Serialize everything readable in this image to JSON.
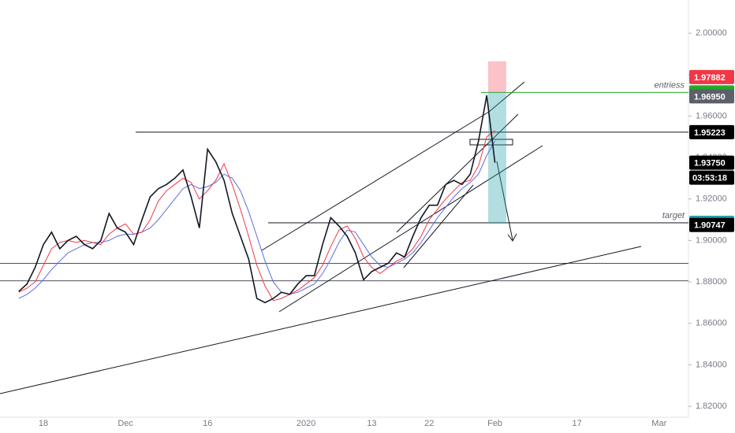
{
  "chart_data": {
    "type": "line",
    "categories": [
      null,
      null,
      null,
      "18",
      null,
      null,
      null,
      null,
      null,
      null,
      null,
      null,
      null,
      "Dec",
      null,
      null,
      null,
      null,
      null,
      null,
      null,
      null,
      null,
      "16",
      null,
      null,
      null,
      null,
      null,
      null,
      null,
      null,
      null,
      null,
      null,
      "2020",
      null,
      null,
      null,
      null,
      null,
      null,
      null,
      "13",
      null,
      null,
      null,
      null,
      null,
      null,
      "22",
      null,
      null,
      null,
      null,
      null,
      null,
      null,
      "Feb",
      null,
      null,
      null,
      null,
      null,
      null,
      null,
      null,
      null,
      "17",
      null,
      null,
      null,
      null,
      null,
      null,
      null,
      null,
      null,
      "Mar",
      null,
      null,
      null
    ],
    "series": [
      {
        "color": "#131722",
        "values": [
          1.8754,
          1.879,
          1.887,
          1.898,
          1.904,
          1.896,
          1.9,
          1.902,
          1.898,
          1.896,
          1.9,
          1.913,
          1.906,
          1.904,
          1.898,
          1.91,
          1.921,
          1.925,
          1.927,
          1.93,
          1.934,
          1.921,
          1.906,
          1.944,
          1.938,
          1.929,
          1.913,
          1.902,
          1.891,
          1.872,
          1.87,
          1.872,
          1.875,
          1.874,
          1.879,
          1.883,
          1.883,
          1.898,
          1.911,
          1.907,
          1.902,
          1.894,
          1.881,
          1.885,
          1.887,
          1.889,
          1.894,
          1.892,
          1.902,
          1.911,
          1.917,
          1.917,
          1.927,
          1.929,
          1.927,
          1.932,
          1.948,
          1.97,
          1.9375,
          null,
          null,
          null,
          null,
          null,
          null,
          null,
          null,
          null,
          null,
          null,
          null,
          null,
          null,
          null,
          null,
          null,
          null,
          null,
          null,
          null,
          null,
          null
        ]
      },
      {
        "color": "#f23645",
        "values": [
          1.875,
          1.877,
          1.88,
          1.888,
          1.896,
          1.899,
          1.9,
          1.899,
          1.9,
          1.899,
          1.898,
          1.903,
          1.906,
          1.908,
          1.903,
          1.904,
          1.91,
          1.919,
          1.924,
          1.927,
          1.93,
          1.928,
          1.92,
          1.924,
          1.929,
          1.937,
          1.927,
          1.915,
          1.902,
          1.888,
          1.878,
          1.871,
          1.872,
          1.874,
          1.876,
          1.879,
          1.882,
          1.888,
          1.897,
          1.905,
          1.907,
          1.901,
          1.892,
          1.887,
          1.884,
          1.887,
          1.89,
          1.892,
          1.896,
          1.902,
          1.91,
          1.915,
          1.92,
          1.924,
          1.928,
          1.929,
          1.936,
          1.95,
          1.953,
          null,
          null,
          null,
          null,
          null,
          null,
          null,
          null,
          null,
          null,
          null,
          null,
          null,
          null,
          null,
          null,
          null,
          null,
          null,
          null,
          null,
          null,
          null
        ]
      },
      {
        "color": "#5b6ee1",
        "values": [
          1.872,
          1.874,
          1.877,
          1.881,
          1.886,
          1.89,
          1.894,
          1.896,
          1.898,
          1.899,
          1.899,
          1.9,
          1.902,
          1.903,
          1.903,
          1.904,
          1.906,
          1.91,
          1.915,
          1.92,
          1.925,
          1.927,
          1.925,
          1.926,
          1.928,
          1.932,
          1.93,
          1.924,
          1.914,
          1.902,
          1.89,
          1.88,
          1.875,
          1.874,
          1.875,
          1.877,
          1.879,
          1.884,
          1.891,
          1.899,
          1.905,
          1.904,
          1.898,
          1.892,
          1.888,
          1.887,
          1.889,
          1.891,
          1.894,
          1.899,
          1.905,
          1.911,
          1.916,
          1.921,
          1.925,
          1.928,
          1.932,
          1.941,
          1.948,
          null,
          null,
          null,
          null,
          null,
          null,
          null,
          null,
          null,
          null,
          null,
          null,
          null,
          null,
          null,
          null,
          null,
          null,
          null,
          null,
          null,
          null,
          null
        ]
      }
    ],
    "ylim": [
      1.8147,
      2.016
    ],
    "yticks": [
      {
        "value": 2.0,
        "label": "2.00000"
      },
      {
        "value": 1.98,
        "label": "1.98000"
      },
      {
        "value": 1.96,
        "label": "1.96000"
      },
      {
        "value": 1.94,
        "label": "1.94000"
      },
      {
        "value": 1.92,
        "label": "1.92000"
      },
      {
        "value": 1.9,
        "label": "1.90000"
      },
      {
        "value": 1.88,
        "label": "1.88000"
      },
      {
        "value": 1.86,
        "label": "1.86000"
      },
      {
        "value": 1.84,
        "label": "1.84000"
      },
      {
        "value": 1.82,
        "label": "1.82000"
      }
    ],
    "levels": [
      {
        "value": 1.97882,
        "label": "1.97882",
        "color": "#f23645"
      },
      {
        "value": 1.97143,
        "label": "1.97143",
        "color": "#22ab28"
      },
      {
        "value": 1.9695,
        "label": "1.96950",
        "color": "#5d606b"
      },
      {
        "value": 1.95223,
        "label": "1.95223",
        "color": "#000000"
      },
      {
        "value": 1.9375,
        "label": "1.93750",
        "color": "#000000"
      },
      {
        "value": 1.9085,
        "label": "1.90850",
        "color": "#26a1aa"
      },
      {
        "value": 1.90747,
        "label": "1.90747",
        "color": "#000000"
      }
    ],
    "countdown": "03:53:18",
    "hlines": [
      1.889,
      1.8805
    ],
    "annotations": [
      {
        "text": "entriess",
        "value": 1.97143
      },
      {
        "text": "target",
        "value": 1.9085
      }
    ]
  }
}
